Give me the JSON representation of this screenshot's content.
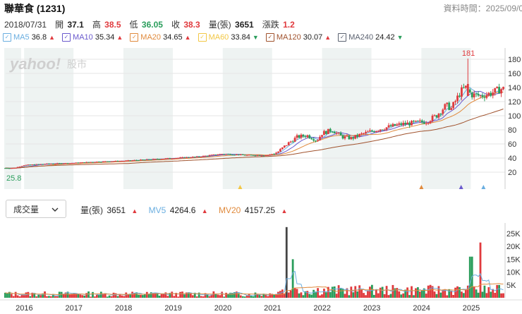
{
  "header": {
    "title": "聯華食 (1231)",
    "data_time": "資料時間：2025/09/0"
  },
  "ohlc": {
    "date": "2018/07/31",
    "open_label": "開",
    "open": "37.1",
    "high_label": "高",
    "high": "38.5",
    "low_label": "低",
    "low": "36.05",
    "close_label": "收",
    "close": "38.3",
    "volume_label": "量(張)",
    "volume": "3651",
    "change_label": "漲跌",
    "change": "1.2"
  },
  "legend": [
    {
      "label": "MA5",
      "value": "36.8",
      "dir": "up",
      "color": "#6aaee0"
    },
    {
      "label": "MA10",
      "value": "35.34",
      "dir": "up",
      "color": "#6a5acd"
    },
    {
      "label": "MA20",
      "value": "34.65",
      "dir": "up",
      "color": "#e08a3c"
    },
    {
      "label": "MA60",
      "value": "33.84",
      "dir": "down",
      "color": "#f2c744"
    },
    {
      "label": "MA120",
      "value": "30.07",
      "dir": "up",
      "color": "#a0522d"
    },
    {
      "label": "MA240",
      "value": "24.42",
      "dir": "down",
      "color": "#5b6270"
    }
  ],
  "volume_panel": {
    "selector_label": "成交量",
    "vol_label": "量(張)",
    "vol_value": "3651",
    "mv5_label": "MV5",
    "mv5_value": "4264.6",
    "mv20_label": "MV20",
    "mv20_value": "4157.25",
    "mv5_color": "#6aaee0",
    "mv20_color": "#e08a3c"
  },
  "watermark": {
    "brand": "yahoo!",
    "section": "股市"
  },
  "chart_data": [
    {
      "type": "candlestick",
      "title": "聯華食 (1231) 價格",
      "x_tick_labels": [
        "2016",
        "2017",
        "2018",
        "2019",
        "2020",
        "2021",
        "2022",
        "2023",
        "2024",
        "2025"
      ],
      "y_ticks": [
        20,
        40,
        60,
        80,
        100,
        120,
        140,
        160,
        180
      ],
      "ylim": [
        2,
        192
      ],
      "annotations": [
        {
          "label": "181",
          "value": 181,
          "kind": "max"
        },
        {
          "label": "25.8",
          "value": 25.8,
          "kind": "min"
        }
      ],
      "approx_close_series": {
        "x": [
          2015.8,
          2016.0,
          2016.5,
          2017.0,
          2017.5,
          2018.0,
          2018.5,
          2019.0,
          2019.5,
          2020.0,
          2020.5,
          2020.9,
          2021.1,
          2021.3,
          2021.5,
          2021.7,
          2021.9,
          2022.0,
          2022.2,
          2022.4,
          2022.6,
          2022.8,
          2023.0,
          2023.2,
          2023.4,
          2023.6,
          2023.9,
          2024.1,
          2024.3,
          2024.5,
          2024.6,
          2024.8,
          2024.9,
          2025.0,
          2025.2,
          2025.4,
          2025.6
        ],
        "y": [
          25.8,
          30,
          32,
          33,
          35,
          36,
          38,
          40,
          42,
          46,
          44,
          44,
          48,
          60,
          70,
          72,
          65,
          75,
          80,
          70,
          68,
          74,
          78,
          82,
          85,
          88,
          90,
          92,
          100,
          115,
          110,
          135,
          140,
          130,
          128,
          132,
          138
        ]
      },
      "ma_values_at_cursor": {
        "MA5": 36.8,
        "MA10": 35.34,
        "MA20": 34.65,
        "MA60": 33.84,
        "MA120": 30.07,
        "MA240": 24.42
      }
    },
    {
      "type": "bar",
      "title": "成交量",
      "y_ticks": [
        "5K",
        "10K",
        "15K",
        "20K",
        "25K"
      ],
      "y_tick_values": [
        5000,
        10000,
        15000,
        20000,
        25000
      ],
      "ylim": [
        0,
        28000
      ],
      "peaks": [
        {
          "x": 2021.3,
          "value": 27500
        },
        {
          "x": 2025.2,
          "value": 21500
        },
        {
          "x": 2025.0,
          "value": 16000
        },
        {
          "x": 2021.4,
          "value": 15000
        }
      ],
      "mv5_value": 4264.6,
      "mv20_value": 4157.25
    }
  ]
}
